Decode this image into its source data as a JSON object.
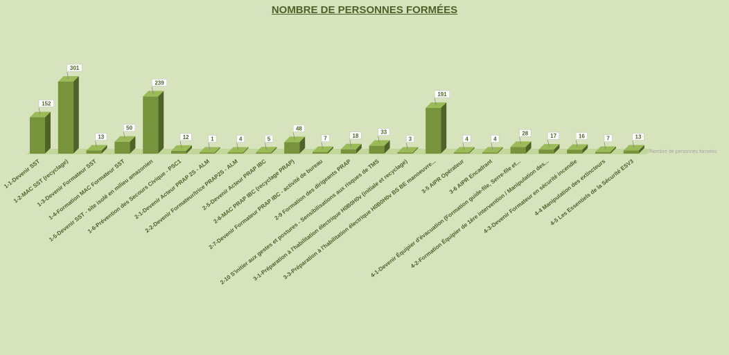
{
  "chart_data": {
    "type": "bar",
    "title": "NOMBRE DE PERSONNES FORMÉES",
    "xlabel": "",
    "ylabel": "",
    "ylim": [
      0,
      301
    ],
    "grid": false,
    "legend": "right",
    "categories": [
      "1-1-Devenir SST",
      "1-2-MAC SST (recyclage)",
      "1-3-Devenir Formateur SST",
      "1-4-Formation MAC Formateur SST",
      "1-5-Devenir SST - site isolé en milieu amazonien",
      "1-6-Prévention des Secours Civique - PSC1",
      "2-1-Devenir Acteur PRAP 2S - ALM",
      "2-2-Devenir Formateur/trice PRAP2S - ALM",
      "2-5-Devenir Acteur PRAP IBC",
      "2-6-MAC PRAP IBC (recyclage PRAP)",
      "2-7-Devenir Formateur PRAP IBC - activité de bureau",
      "2-9 Formation des dirigeants PRAP",
      "2-10 S'initier aux gestes et postures - Sensibilisations aux risques de TMS",
      "3-1-Préparation à l'habilitation électrique H0B0H0v (initiale et recyclage)",
      "3-3-Préparation à l'habilitation électrique H0B0H0v BS BE manoeuvre...",
      "3-5 AIPR Opérateur",
      "3-6 AIPR Encadrant",
      "4-1-Devenir Équipier d'évacuation (Formation guide-file, Serre-file et...",
      "4-2-Formation Équipier de 1ère intervention / Manipulation des...",
      "4-3-Devenir Formateur en sécurité incendie",
      "4-4 Manipulation des extincteurs",
      "4-5 Les Essentiels de la Sécurité ESV3"
    ],
    "series": [
      {
        "name": "Nombre de personnes formées",
        "values": [
          152,
          301,
          13,
          50,
          239,
          12,
          1,
          4,
          5,
          48,
          7,
          18,
          33,
          3,
          191,
          4,
          4,
          28,
          17,
          16,
          7,
          13
        ]
      }
    ],
    "colors": {
      "front": "#77933c",
      "side": "#4f6228",
      "top": "#9bbb59",
      "floor": "#c4d79b",
      "label_text": "#4f6128",
      "legend_text": "#a6a6a6"
    }
  }
}
